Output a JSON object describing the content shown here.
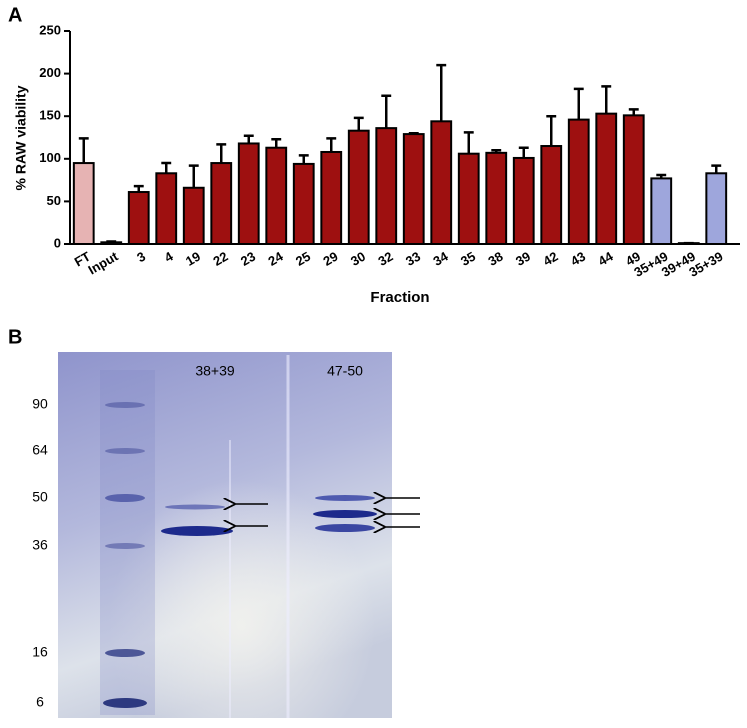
{
  "panel_labels": [
    "A",
    "B"
  ],
  "chart_data": {
    "type": "bar",
    "y_label": "% RAW viability",
    "x_label": "Fraction",
    "categories": [
      "FT",
      "Input",
      "3",
      "4",
      "19",
      "22",
      "23",
      "24",
      "25",
      "29",
      "30",
      "32",
      "33",
      "34",
      "35",
      "38",
      "39",
      "42",
      "43",
      "44",
      "49",
      "35+49",
      "39+49",
      "35+39"
    ],
    "values": [
      95,
      2,
      61,
      83,
      66,
      95,
      118,
      113,
      94,
      108,
      133,
      136,
      129,
      144,
      106,
      107,
      101,
      115,
      146,
      153,
      151,
      77,
      1,
      83
    ],
    "errors": [
      29,
      1,
      7,
      12,
      26,
      22,
      9,
      10,
      10,
      16,
      15,
      38,
      1,
      66,
      25,
      3,
      12,
      35,
      36,
      32,
      7,
      4,
      0,
      9
    ],
    "colors": [
      "#e6b3b3",
      "#8b0d0d",
      "#9e1010",
      "#9e1010",
      "#9e1010",
      "#9e1010",
      "#9e1010",
      "#9e1010",
      "#9e1010",
      "#9e1010",
      "#9e1010",
      "#9e1010",
      "#9e1010",
      "#9e1010",
      "#9e1010",
      "#9e1010",
      "#9e1010",
      "#9e1010",
      "#9e1010",
      "#9e1010",
      "#9e1010",
      "#9ea6dc",
      "#9ea6dc",
      "#9ea6dc"
    ],
    "ylim": [
      0,
      250
    ],
    "yticks": [
      0,
      50,
      100,
      150,
      200,
      250
    ],
    "grid": false
  },
  "gel": {
    "lanes": [
      "38+39",
      "47-50"
    ],
    "markers": [
      90,
      64,
      50,
      36,
      16,
      6
    ]
  }
}
